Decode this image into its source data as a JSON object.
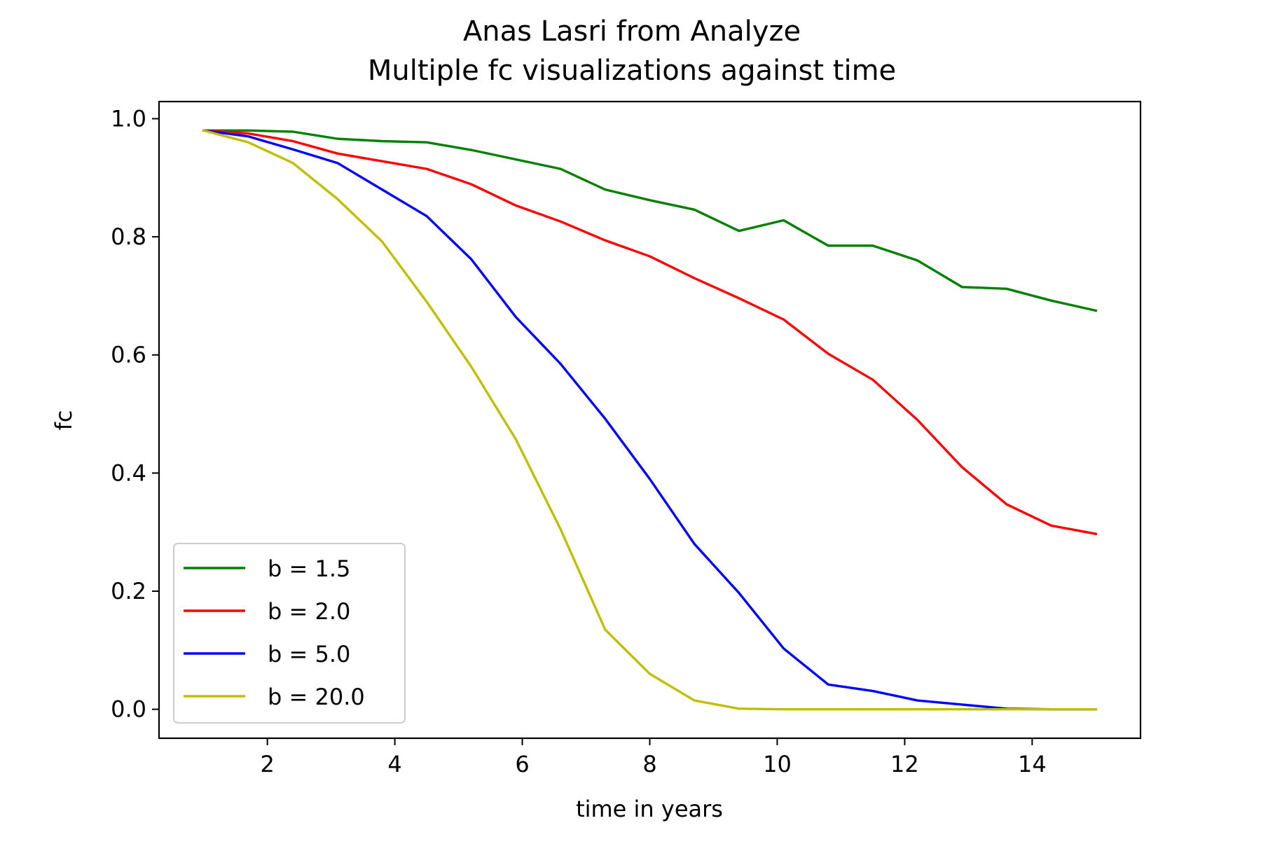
{
  "chart_data": {
    "type": "line",
    "title_lines": [
      "Anas Lasri from Analyze",
      "Multiple fc visualizations against time"
    ],
    "xlabel": "time in years",
    "ylabel": "fc",
    "xlim": [
      0.3,
      15.7
    ],
    "ylim": [
      -0.049,
      1.029
    ],
    "xticks": [
      2,
      4,
      6,
      8,
      10,
      12,
      14
    ],
    "yticks": [
      0.0,
      0.2,
      0.4,
      0.6,
      0.8,
      1.0
    ],
    "xtick_labels": [
      "2",
      "4",
      "6",
      "8",
      "10",
      "12",
      "14"
    ],
    "ytick_labels": [
      "0.0",
      "0.2",
      "0.4",
      "0.6",
      "0.8",
      "1.0"
    ],
    "grid": false,
    "legend_position": "lower-left",
    "x": [
      1.0,
      1.7,
      2.4,
      3.1,
      3.8,
      4.5,
      5.2,
      5.9,
      6.6,
      7.3,
      8.0,
      8.7,
      9.4,
      10.1,
      10.8,
      11.5,
      12.2,
      12.9,
      13.6,
      14.3,
      15.0
    ],
    "series": [
      {
        "name": "b = 1.5",
        "color": "#008000",
        "values": [
          0.98,
          0.98,
          0.978,
          0.966,
          0.962,
          0.96,
          0.947,
          0.931,
          0.915,
          0.88,
          0.862,
          0.846,
          0.81,
          0.828,
          0.785,
          0.785,
          0.76,
          0.715,
          0.712,
          0.692,
          0.675
        ]
      },
      {
        "name": "b = 2.0",
        "color": "#ff0000",
        "values": [
          0.98,
          0.975,
          0.962,
          0.941,
          0.928,
          0.915,
          0.889,
          0.853,
          0.826,
          0.794,
          0.767,
          0.73,
          0.696,
          0.66,
          0.602,
          0.558,
          0.49,
          0.41,
          0.347,
          0.311,
          0.297
        ]
      },
      {
        "name": "b = 5.0",
        "color": "#0000ff",
        "values": [
          0.98,
          0.97,
          0.948,
          0.925,
          0.88,
          0.835,
          0.762,
          0.664,
          0.585,
          0.492,
          0.39,
          0.28,
          0.197,
          0.103,
          0.042,
          0.031,
          0.015,
          0.008,
          0.001,
          0.0,
          0.0
        ]
      },
      {
        "name": "b = 20.0",
        "color": "#bfbf00",
        "values": [
          0.98,
          0.96,
          0.925,
          0.864,
          0.792,
          0.69,
          0.58,
          0.457,
          0.305,
          0.135,
          0.06,
          0.015,
          0.001,
          0.0,
          0.0,
          0.0,
          0.0,
          0.0,
          0.0,
          0.0,
          0.0
        ]
      }
    ]
  }
}
